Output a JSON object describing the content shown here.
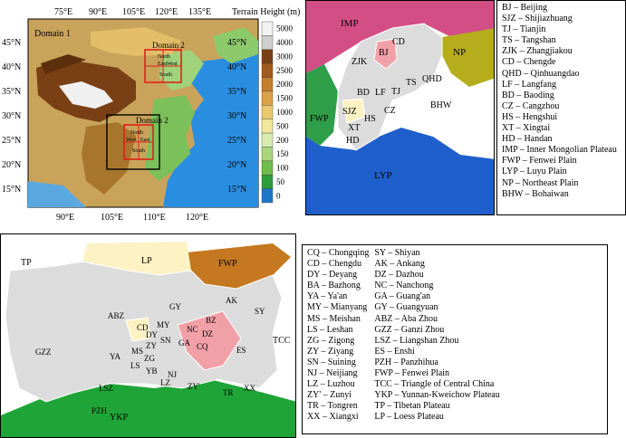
{
  "domain_map": {
    "longitudes": [
      "75°E",
      "90°E",
      "105°E",
      "120°E",
      "135°E"
    ],
    "latitudes": [
      "45°N",
      "40°N",
      "35°N",
      "30°N",
      "25°N",
      "20°N",
      "15°N"
    ],
    "domain1_label": "Domain 1",
    "domain2_label_north": "Domain 2",
    "domain2_label_south": "Domain 2",
    "north_box_labels": [
      "North",
      "East",
      "West",
      "South"
    ],
    "south_box_labels": [
      "North",
      "West",
      "East",
      "South"
    ]
  },
  "colorbar": {
    "title": "Terrain Height (m)",
    "ticks": [
      "5000",
      "4000",
      "3000",
      "2500",
      "2000",
      "1500",
      "1000",
      "500",
      "200",
      "150",
      "100",
      "50",
      "0"
    ],
    "colors": [
      "#f3f3f3",
      "#cfcfcf",
      "#7a4015",
      "#a05a1c",
      "#c47f2c",
      "#d9a148",
      "#e9c76e",
      "#f3e79c",
      "#d9ecb0",
      "#a9d679",
      "#6cbd4b",
      "#2f9c3a",
      "#1f77c9"
    ]
  },
  "north_map": {
    "regions": [
      {
        "code": "IMP",
        "color": "#d44e86"
      },
      {
        "code": "NP",
        "color": "#b5ad1c"
      },
      {
        "code": "FWP",
        "color": "#2e9e48"
      },
      {
        "code": "LYP",
        "color": "#1f5fcc"
      },
      {
        "code": "BHW",
        "color": "#ffffff"
      },
      {
        "code": "BJ",
        "color": "#f2a0a8"
      },
      {
        "code": "SJZ",
        "color": "#fdf2c4"
      }
    ],
    "city_labels": [
      "CD",
      "ZJK",
      "BJ",
      "QHD",
      "TS",
      "TJ",
      "LF",
      "BD",
      "SJZ",
      "CZ",
      "HS",
      "XT",
      "HD"
    ]
  },
  "north_legend": [
    "BJ – Beijing",
    "SJZ – Shijiazhuang",
    "TJ – Tianjin",
    "TS – Tangshan",
    "ZJK – Zhangjiakou",
    "CD – Chengde",
    "QHD – Qinhuangdao",
    "LF – Langfang",
    "BD – Baoding",
    "CZ – Cangzhou",
    "HS – Hengshui",
    "XT – Xingtai",
    "HD – Handan",
    "IMP – Inner Mongolian  Plateau",
    "FWP – Fenwei Plain",
    "LYP – Luyu Plain",
    "NP – Northeast Plain",
    "BHW – Bohaiwan"
  ],
  "south_map": {
    "regions": [
      {
        "code": "TP",
        "color": "#ffffff"
      },
      {
        "code": "LP",
        "color": "#fdf2c4"
      },
      {
        "code": "FWP",
        "color": "#c5781f"
      },
      {
        "code": "TCC",
        "color": "#ffffff"
      },
      {
        "code": "YKP",
        "color": "#1fa537"
      },
      {
        "code": "CQ",
        "color": "#f2a0a8"
      },
      {
        "code": "CD",
        "color": "#fdf2c4"
      }
    ],
    "city_labels": [
      "ABZ",
      "GY",
      "AK",
      "SY",
      "BZ",
      "MY",
      "NC",
      "DZ",
      "CD",
      "DY",
      "SN",
      "GA",
      "GZZ",
      "YA",
      "MS",
      "ZY",
      "CQ",
      "ES",
      "LS",
      "ZG",
      "YB",
      "NJ",
      "LZ",
      "XX",
      "LSZ",
      "ZY'",
      "TR",
      "PZH"
    ]
  },
  "south_legend_left": [
    "CQ – Chongqing",
    "CD – Chengdu",
    "DY – Deyang",
    "BA – Bazhong",
    "YA – Ya'an",
    "MY – Mianyang",
    "MS – Meishan",
    "LS – Leshan",
    "ZG – Zigong",
    "ZY – Ziyang",
    "SN – Suining",
    "NJ – Neijiang",
    "LZ – Luzhou",
    "ZY' – Zunyi",
    "TR – Tongren",
    "XX – Xiangxi"
  ],
  "south_legend_right": [
    "SY – Shiyan",
    "AK – Ankang",
    "DZ – Dazhou",
    "NC – Nanchong",
    "GA – Guang'an",
    "GY – Guangyuan",
    "ABZ – Aba Zhou",
    "GZZ – Ganzi Zhou",
    "LSZ – Liangshan Zhou",
    "ES – Enshi",
    "PZH – Panzhihua",
    "FWP – Fenwei Plain",
    "TCC – Triangle of Central China",
    "YKP – Yunnan-Kweichow Plateau",
    "TP – Tibetan Plateau",
    "LP – Loess Plateau"
  ]
}
